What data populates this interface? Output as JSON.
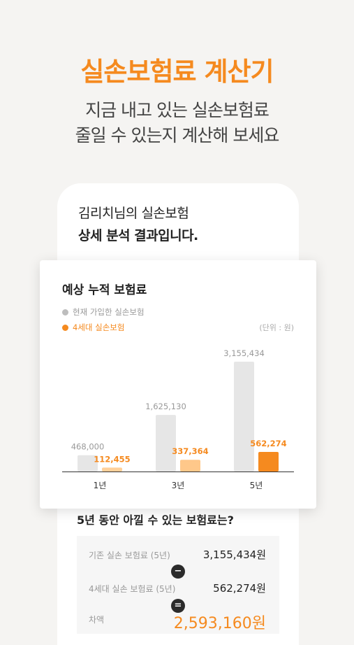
{
  "hero": {
    "title": "실손보험료 계산기",
    "subtitle_line1": "지금 내고 있는 실손보험료",
    "subtitle_line2": "줄일 수 있는지 계산해 보세요"
  },
  "result_header": {
    "line1": "김리치님의 실손보험",
    "line2": "상세 분석 결과입니다."
  },
  "chart_card": {
    "title": "예상 누적 보험료",
    "legend": [
      "현재 가입한 실손보험",
      "4세대 실손보험"
    ],
    "unit": "(단위 : 원)"
  },
  "chart_data": {
    "type": "bar",
    "categories": [
      "1년",
      "3년",
      "5년"
    ],
    "series": [
      {
        "name": "현재 가입한 실손보험",
        "values": [
          468000,
          1625130,
          3155434
        ],
        "labels": [
          "468,000",
          "1,625,130",
          "3,155,434"
        ],
        "color": "#e6e6e6",
        "label_color": "#999999"
      },
      {
        "name": "4세대 실손보험",
        "values": [
          112455,
          337364,
          562274
        ],
        "labels": [
          "112,455",
          "337,364",
          "562,274"
        ],
        "color_scale": [
          "#ffd09a",
          "#ffc88a",
          "#f58a1f"
        ],
        "label_color": "#f58a1f"
      }
    ],
    "colors": {
      "accent": "#f58a1f",
      "neutral": "#e6e6e6"
    }
  },
  "savings": {
    "title": "5년 동안 아낄 수 있는 보험료는?",
    "rows": [
      {
        "label": "기존 실손 보험료 (5년)",
        "value": "3,155,434원"
      },
      {
        "label": "4세대 실손 보험료 (5년)",
        "value": "562,274원"
      },
      {
        "label": "차액",
        "value": "2,593,160원"
      }
    ],
    "minus_icon": "−",
    "equals_icon": "="
  }
}
